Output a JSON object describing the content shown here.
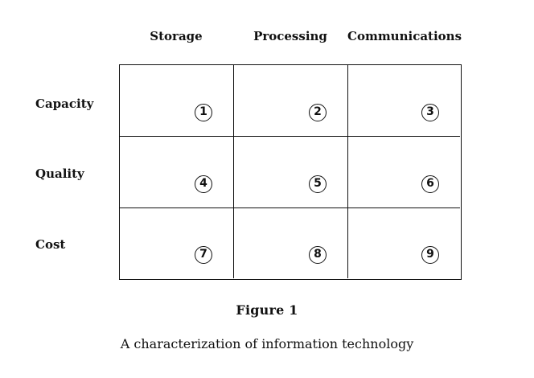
{
  "columns": [
    "Storage",
    "Processing",
    "Communications"
  ],
  "rows": [
    "Capacity",
    "Quality",
    "Cost"
  ],
  "cells": [
    [
      "1",
      "2",
      "3"
    ],
    [
      "4",
      "5",
      "6"
    ],
    [
      "7",
      "8",
      "9"
    ]
  ],
  "figure": {
    "title": "Figure 1",
    "caption": "A characterization of information technology"
  }
}
